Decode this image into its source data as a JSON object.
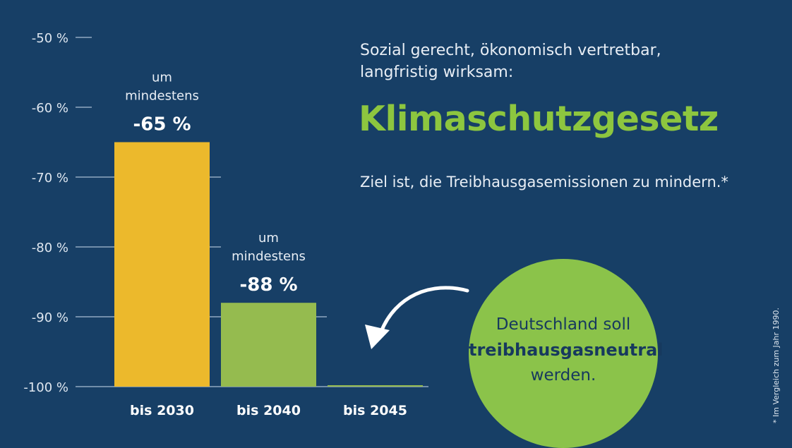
{
  "colors": {
    "background": "#173f66",
    "bar_2030": "#ecb92c",
    "bar_2040": "#95bb4f",
    "bar_2045": "#95bb4f",
    "title": "#8dc63f",
    "circle": "#8bc34a",
    "grid": "#a9bdd2"
  },
  "intro": {
    "line1": "Sozial gerecht, ökonomisch vertretbar,",
    "line2": "langfristig wirksam:"
  },
  "title": "Klimaschutzgesetz",
  "goal": "Ziel ist, die Treibhausgasemissionen zu mindern.*",
  "circle": {
    "line1": "Deutschland soll",
    "line2": "treibhausgasneutral",
    "line3": "werden.",
    "arrow_icon": "curved-arrow"
  },
  "footnote": "* Im Vergleich zum Jahr 1990.",
  "chart_data": {
    "type": "bar",
    "categories": [
      "bis 2030",
      "bis 2040",
      "bis 2045"
    ],
    "values": [
      -65,
      -88,
      -100
    ],
    "annotations": [
      {
        "line1": "um",
        "line2": "mindestens",
        "value": "-65 %"
      },
      {
        "line1": "um",
        "line2": "mindestens",
        "value": "-88 %"
      },
      null
    ],
    "yticks": [
      -50,
      -60,
      -70,
      -80,
      -90,
      -100
    ],
    "ytick_labels": [
      "-50 %",
      "-60 %",
      "-70 %",
      "-80 %",
      "-90 %",
      "-100 %"
    ],
    "ylim": [
      -50,
      -100
    ],
    "grid": true
  }
}
